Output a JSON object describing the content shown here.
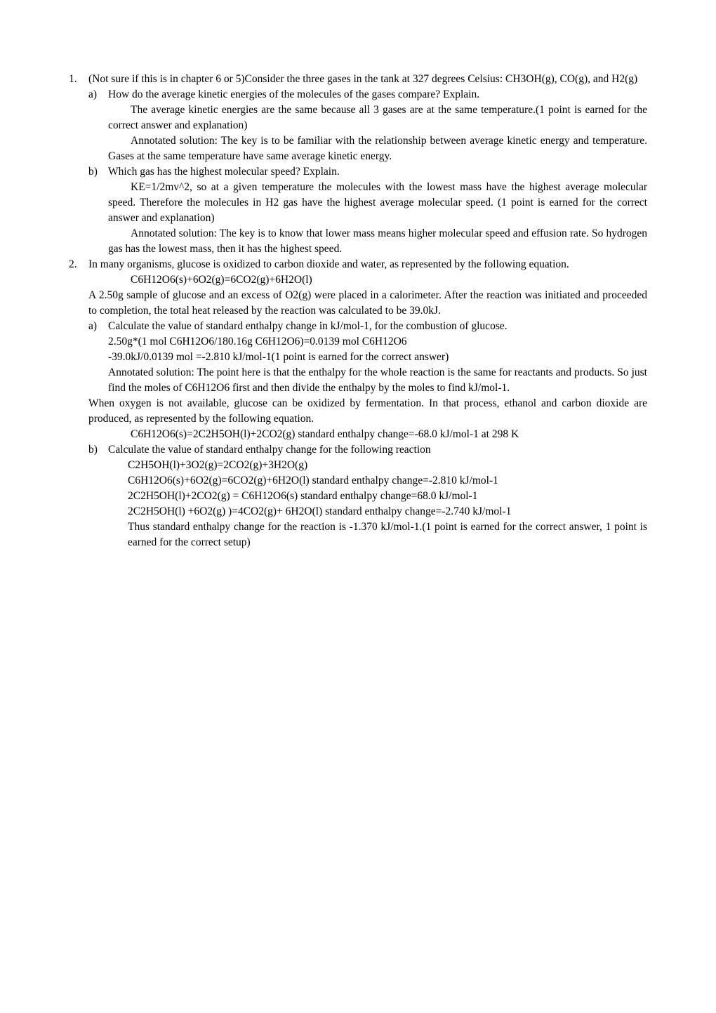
{
  "q1": {
    "number": "1.",
    "intro": "(Not sure if this is in chapter 6 or 5)Consider the three gases in the tank at 327 degrees Celsius: CH3OH(g), CO(g), and H2(g)",
    "a": {
      "letter": "a)",
      "question": "How do the average kinetic energies of the molecules of the gases compare? Explain.",
      "answer1": "The average kinetic energies are the same because all 3 gases are at the same temperature.(1 point is earned for the correct answer and explanation)",
      "answer2": "Annotated solution: The key is to be familiar with the relationship between average kinetic energy and temperature. Gases at the same temperature have same average kinetic energy."
    },
    "b": {
      "letter": "b)",
      "question": "Which gas has the highest molecular speed? Explain.",
      "answer1": "KE=1/2mv^2, so at a given temperature the molecules with the lowest mass have the highest average molecular speed. Therefore the molecules in H2 gas have the highest average molecular speed. (1 point is earned for the correct answer and explanation)",
      "answer2": "Annotated solution: The key is to know that lower mass means higher molecular speed and effusion rate. So hydrogen gas has the lowest mass, then it has the highest speed."
    }
  },
  "q2": {
    "number": "2.",
    "intro": "In many organisms, glucose is oxidized to carbon dioxide and water, as represented by the following equation.",
    "equation1": "C6H12O6(s)+6O2(g)=6CO2(g)+6H2O(l)",
    "intro2": "A 2.50g sample of glucose and an excess of O2(g) were placed in a calorimeter. After the reaction was initiated and proceeded to completion, the total heat released by the reaction was calculated to be 39.0kJ.",
    "a": {
      "letter": "a)",
      "question": "Calculate the value of standard enthalpy change in kJ/mol-1, for the combustion of glucose.",
      "calc1": "2.50g*(1 mol C6H12O6/180.16g C6H12O6)=0.0139 mol C6H12O6",
      "calc2": "-39.0kJ/0.0139 mol =-2.810 kJ/mol-1(1 point is earned for the correct answer)",
      "annotated": "Annotated solution: The point here is that the enthalpy for the whole reaction is the same for reactants and products. So just find the moles of C6H12O6 first and then divide the enthalpy by the moles to find kJ/mol-1."
    },
    "mid1": "When oxygen is not available, glucose can be oxidized by fermentation. In that process, ethanol and carbon dioxide are produced, as represented by the following equation.",
    "mid2": "C6H12O6(s)=2C2H5OH(l)+2CO2(g) standard enthalpy change=-68.0 kJ/mol-1 at 298 K",
    "b": {
      "letter": "b)",
      "question": "Calculate the value of standard enthalpy change for the following reaction",
      "eq1": "C2H5OH(l)+3O2(g)=2CO2(g)+3H2O(g)",
      "eq2": "C6H12O6(s)+6O2(g)=6CO2(g)+6H2O(l) standard enthalpy change=-2.810 kJ/mol-1",
      "eq3": "2C2H5OH(l)+2CO2(g) = C6H12O6(s) standard enthalpy change=68.0 kJ/mol-1",
      "eq4": "2C2H5OH(l) +6O2(g) )=4CO2(g)+ 6H2O(l) standard enthalpy change=-2.740 kJ/mol-1",
      "conclusion": "Thus standard enthalpy change for the reaction is -1.370 kJ/mol-1.(1 point is earned for the correct answer, 1 point is earned for the correct setup)"
    }
  }
}
